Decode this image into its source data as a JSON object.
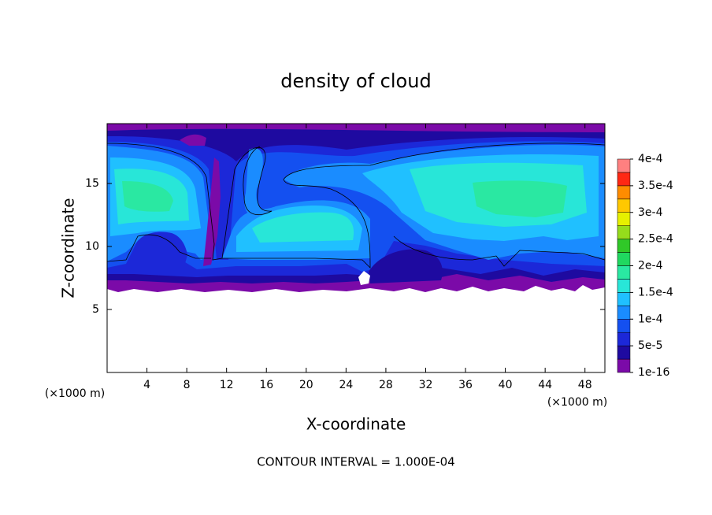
{
  "chart_data": {
    "type": "contour",
    "title": "density of cloud",
    "xlabel": "X-coordinate",
    "ylabel": "Z-coordinate",
    "x_unit": "(×1000 m)",
    "y_unit": "(×1000 m)",
    "footer": "CONTOUR INTERVAL = 1.000E-04",
    "xlim": [
      0,
      50
    ],
    "ylim": [
      0,
      19.75
    ],
    "xticks": [
      4,
      8,
      12,
      16,
      20,
      24,
      28,
      32,
      36,
      40,
      44,
      48
    ],
    "yticks": [
      5,
      10,
      15
    ],
    "colorbar": {
      "clim": [
        1e-16,
        0.0004
      ],
      "colors": [
        "#7b0aa8",
        "#1e0aa0",
        "#1c28d8",
        "#1450f0",
        "#1a8cff",
        "#20c0ff",
        "#28e6d8",
        "#2ae8a2",
        "#20d860",
        "#30c828",
        "#96dc1c",
        "#e6f000",
        "#ffc800",
        "#ff8c00",
        "#ff2814",
        "#ff8080"
      ],
      "ticks": [
        {
          "value": 1e-16,
          "label": "1e-16"
        },
        {
          "value": 5e-05,
          "label": "5e-5"
        },
        {
          "value": 0.0001,
          "label": "1e-4"
        },
        {
          "value": 0.00015,
          "label": "1.5e-4"
        },
        {
          "value": 0.0002,
          "label": "2e-4"
        },
        {
          "value": 0.00025,
          "label": "2.5e-4"
        },
        {
          "value": 0.0003,
          "label": "3e-4"
        },
        {
          "value": 0.00035,
          "label": "3.5e-4"
        },
        {
          "value": 0.0004,
          "label": "4e-4"
        }
      ]
    }
  }
}
